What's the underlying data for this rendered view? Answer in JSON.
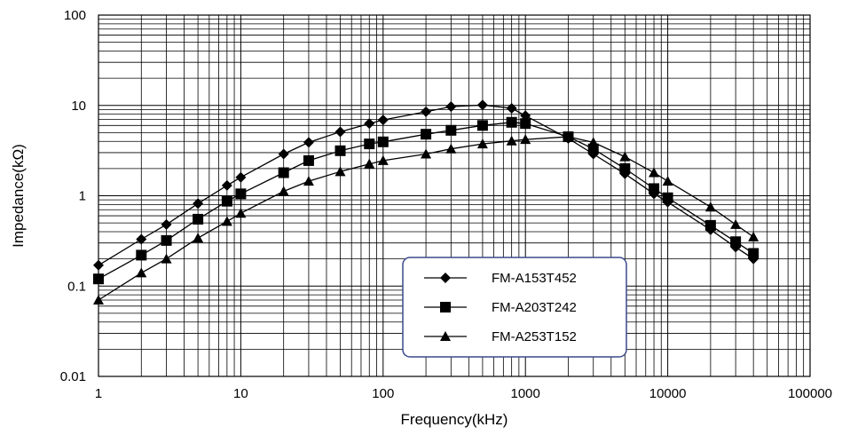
{
  "chart_data": {
    "type": "line",
    "xlabel": "Frequency(kHz)",
    "ylabel": "Impedance(kΩ)",
    "x_scale": "log",
    "y_scale": "log",
    "xlim": [
      1,
      100000
    ],
    "ylim": [
      0.01,
      100
    ],
    "grid": true,
    "legend_position": "bottom-center",
    "x_tick_labels": [
      "1",
      "10",
      "100",
      "1000",
      "10000",
      "100000"
    ],
    "y_tick_labels": [
      "0.01",
      "0.1",
      "1",
      "10",
      "100"
    ],
    "series": [
      {
        "name": "FM-A153T452",
        "marker": "diamond",
        "x": [
          1,
          2,
          3,
          5,
          8,
          10,
          20,
          30,
          50,
          80,
          100,
          200,
          300,
          500,
          800,
          1000,
          2000,
          3000,
          5000,
          8000,
          10000,
          20000,
          30000,
          40000
        ],
        "y": [
          0.17,
          0.33,
          0.48,
          0.82,
          1.3,
          1.6,
          2.9,
          3.9,
          5.1,
          6.3,
          6.9,
          8.5,
          9.7,
          10.1,
          9.3,
          7.7,
          4.3,
          2.9,
          1.75,
          1.05,
          0.85,
          0.42,
          0.27,
          0.2
        ]
      },
      {
        "name": "FM-A203T242",
        "marker": "square",
        "x": [
          1,
          2,
          3,
          5,
          8,
          10,
          20,
          30,
          50,
          80,
          100,
          200,
          300,
          500,
          800,
          1000,
          2000,
          3000,
          5000,
          8000,
          10000,
          20000,
          30000,
          40000
        ],
        "y": [
          0.12,
          0.22,
          0.32,
          0.55,
          0.87,
          1.05,
          1.8,
          2.45,
          3.15,
          3.75,
          3.95,
          4.8,
          5.3,
          6.0,
          6.5,
          6.3,
          4.5,
          3.3,
          2.0,
          1.2,
          0.95,
          0.47,
          0.31,
          0.23
        ]
      },
      {
        "name": "FM-A253T152",
        "marker": "triangle",
        "x": [
          1,
          2,
          3,
          5,
          8,
          10,
          20,
          30,
          50,
          80,
          100,
          200,
          300,
          500,
          800,
          1000,
          2000,
          3000,
          5000,
          8000,
          10000,
          20000,
          30000,
          40000
        ],
        "y": [
          0.07,
          0.14,
          0.2,
          0.34,
          0.52,
          0.64,
          1.12,
          1.45,
          1.85,
          2.25,
          2.45,
          2.9,
          3.3,
          3.75,
          4.05,
          4.2,
          4.5,
          3.9,
          2.7,
          1.8,
          1.45,
          0.75,
          0.48,
          0.35
        ]
      }
    ]
  }
}
